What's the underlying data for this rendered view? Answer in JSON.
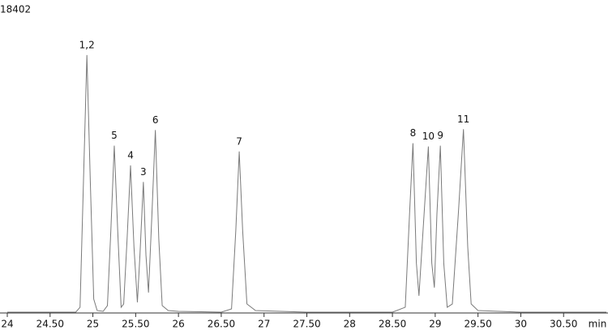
{
  "chart_data": {
    "type": "line",
    "x_label": "min",
    "xlim": [
      24,
      31.0
    ],
    "ylim": [
      0,
      18402
    ],
    "yticks": [
      18402
    ],
    "xticks": [
      24,
      {
        "value": 24.5,
        "label": "24.50"
      },
      25,
      {
        "value": 25.5,
        "label": "25.50"
      },
      26,
      {
        "value": 26.5,
        "label": "26.50"
      },
      27,
      {
        "value": 27.5,
        "label": "27.50"
      },
      28,
      {
        "value": 28.5,
        "label": "28.50"
      },
      29,
      {
        "value": 29.5,
        "label": "29.50"
      },
      30,
      {
        "value": 30.5,
        "label": "30.50"
      }
    ],
    "series": [
      {
        "color": "#7a7a7a",
        "x": [
          24.0,
          24.8,
          24.85,
          24.89,
          24.93,
          24.97,
          25.01,
          25.05,
          25.12,
          25.17,
          25.21,
          25.25,
          25.29,
          25.33,
          25.36,
          25.4,
          25.44,
          25.48,
          25.52,
          25.55,
          25.59,
          25.62,
          25.65,
          25.69,
          25.73,
          25.77,
          25.81,
          25.88,
          26.0,
          26.5,
          26.62,
          26.67,
          26.71,
          26.75,
          26.8,
          26.9,
          27.5,
          28.5,
          28.65,
          28.7,
          28.74,
          28.78,
          28.81,
          28.87,
          28.92,
          28.96,
          28.99,
          29.02,
          29.06,
          29.1,
          29.14,
          29.2,
          29.27,
          29.33,
          29.38,
          29.42,
          29.5,
          30.0,
          31.0
        ],
        "values": [
          0,
          0,
          300,
          8000,
          15730,
          8000,
          800,
          100,
          50,
          400,
          5000,
          10185,
          5000,
          300,
          500,
          4500,
          8975,
          4000,
          600,
          3500,
          7966,
          3500,
          1200,
          6000,
          11143,
          4500,
          400,
          100,
          50,
          0,
          200,
          5000,
          9832,
          5000,
          500,
          100,
          0,
          0,
          300,
          6000,
          10336,
          3000,
          1000,
          6000,
          10134,
          3000,
          1500,
          6000,
          10185,
          3000,
          300,
          500,
          6000,
          11193,
          4000,
          500,
          100,
          0,
          0
        ]
      }
    ],
    "annotations": [
      {
        "text": "1,2",
        "x": 24.93,
        "y": 15730
      },
      {
        "text": "5",
        "x": 25.25,
        "y": 10185
      },
      {
        "text": "4",
        "x": 25.44,
        "y": 8975
      },
      {
        "text": "3",
        "x": 25.59,
        "y": 7966
      },
      {
        "text": "6",
        "x": 25.73,
        "y": 11143
      },
      {
        "text": "7",
        "x": 26.71,
        "y": 9832
      },
      {
        "text": "8",
        "x": 28.74,
        "y": 10336
      },
      {
        "text": "10",
        "x": 28.92,
        "y": 10134
      },
      {
        "text": "9",
        "x": 29.06,
        "y": 10185
      },
      {
        "text": "11",
        "x": 29.33,
        "y": 11193
      }
    ]
  }
}
